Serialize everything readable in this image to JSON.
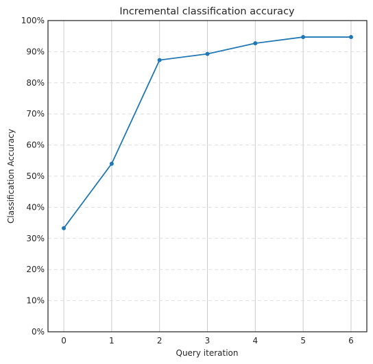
{
  "chart_data": {
    "type": "line",
    "title": "Incremental classification accuracy",
    "xlabel": "Query iteration",
    "ylabel": "Classification Accuracy",
    "x": [
      0,
      1,
      2,
      3,
      4,
      5,
      6
    ],
    "xlim": [
      -0.33,
      6.33
    ],
    "ylim": [
      0,
      1
    ],
    "yticks": [
      0,
      0.1,
      0.2,
      0.3,
      0.4,
      0.5,
      0.6,
      0.7,
      0.8,
      0.9,
      1.0
    ],
    "ytick_labels": [
      "0%",
      "10%",
      "20%",
      "30%",
      "40%",
      "50%",
      "60%",
      "70%",
      "80%",
      "90%",
      "100%"
    ],
    "xtick_labels": [
      "0",
      "1",
      "2",
      "3",
      "4",
      "5",
      "6"
    ],
    "series": [
      {
        "values": [
          0.333,
          0.54,
          0.873,
          0.893,
          0.927,
          0.947,
          0.947
        ],
        "color": "#1f77b4"
      }
    ],
    "grid": {
      "x": "solid light gray",
      "y": "dashed light gray"
    },
    "marker": "circle",
    "legend": "none"
  }
}
